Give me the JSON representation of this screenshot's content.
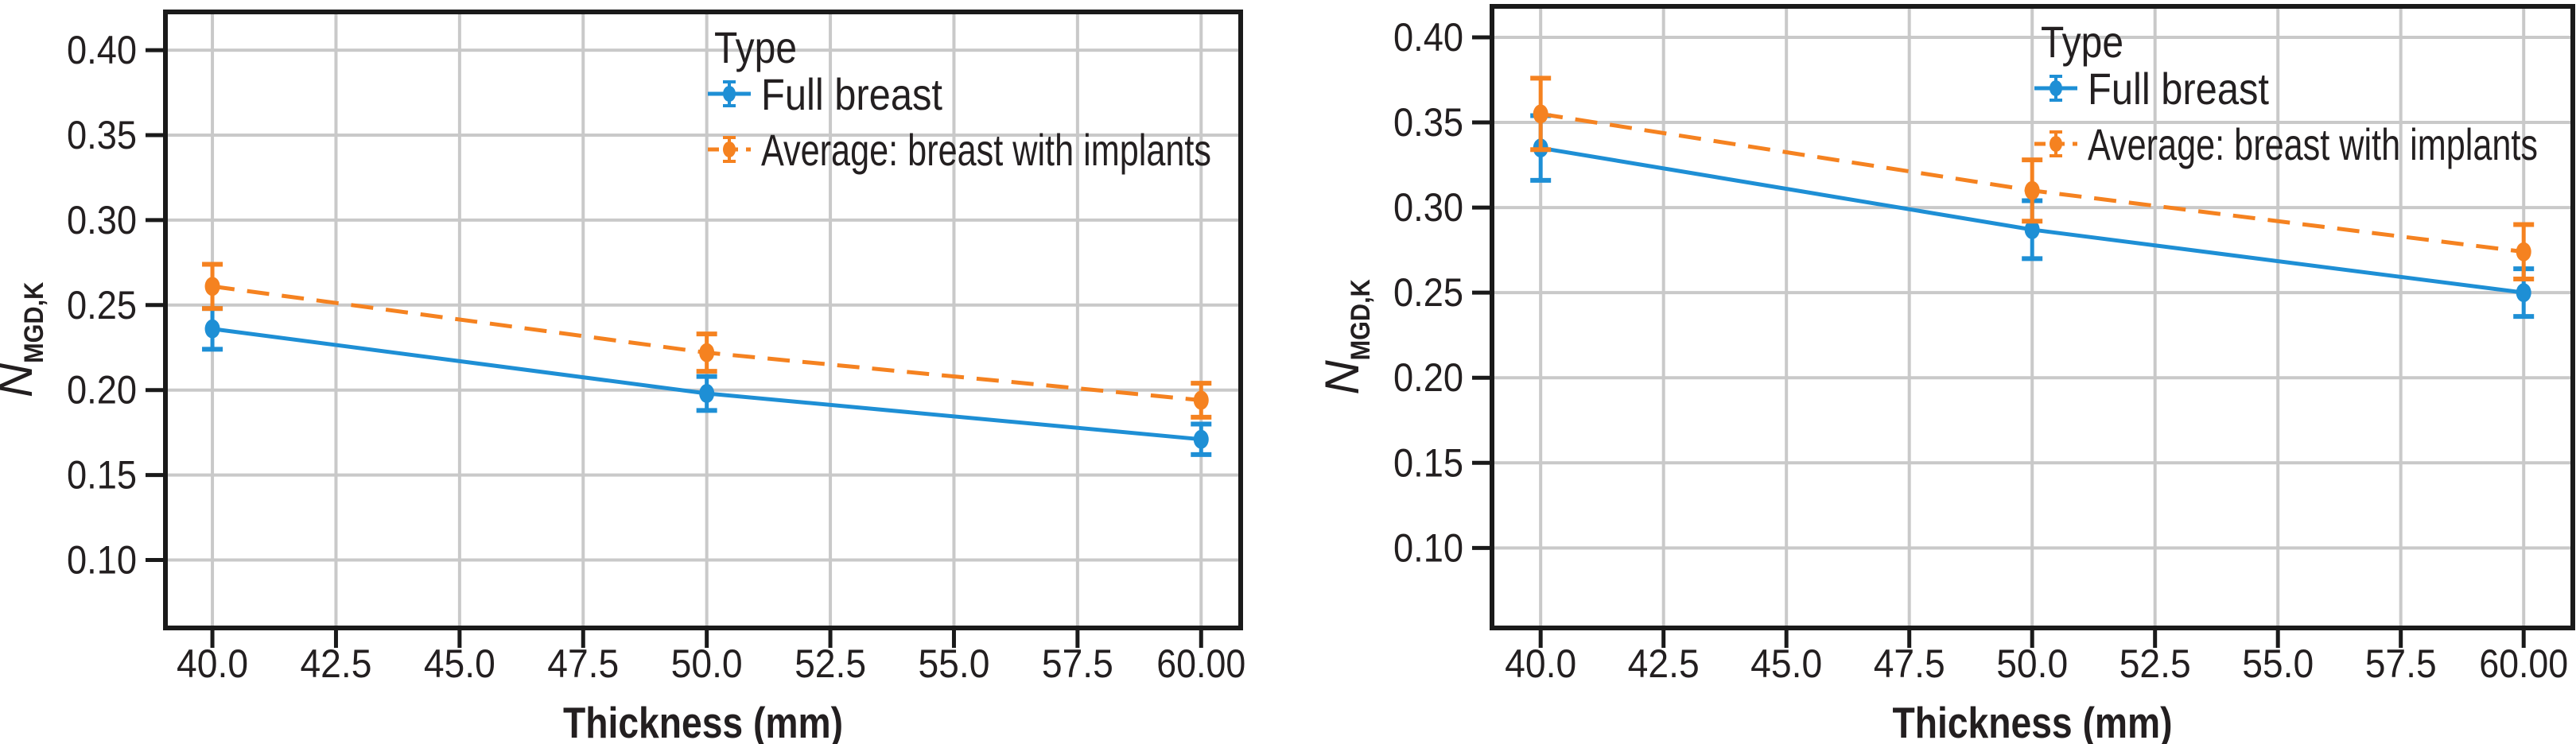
{
  "colors": {
    "full_breast_blue": "#1e8fd5",
    "implants_orange": "#f58220",
    "grid_gray": "#c9c9c9",
    "axis_black": "#1a1a1a",
    "text_black": "#231f20",
    "background": "#ffffff"
  },
  "chart_data": [
    {
      "type": "line",
      "panel": "left",
      "title": "",
      "xlabel": "Thickness (mm)",
      "ylabel_base": "N",
      "ylabel_subscript": "MGD,K",
      "grid": true,
      "legend": {
        "title": "Type",
        "position": "upper center inside"
      },
      "x_tick_labels": [
        "40.0",
        "42.5",
        "45.0",
        "47.5",
        "50.0",
        "52.5",
        "55.0",
        "57.5",
        "60.00"
      ],
      "x_tick_values": [
        40.0,
        42.5,
        45.0,
        47.5,
        50.0,
        52.5,
        55.0,
        57.5,
        60.0
      ],
      "y_tick_labels": [
        "0.40",
        "0.35",
        "0.30",
        "0.25",
        "0.20",
        "0.15",
        "0.10"
      ],
      "y_tick_values": [
        0.4,
        0.35,
        0.3,
        0.25,
        0.2,
        0.15,
        0.1
      ],
      "xlim": [
        39.05,
        60.8
      ],
      "ylim": [
        0.06,
        0.4225
      ],
      "series": [
        {
          "name": "Full breast",
          "color": "#1e8fd5",
          "line_style": "solid",
          "marker": "circle",
          "x": [
            40.0,
            50.0,
            60.0
          ],
          "y": [
            0.236,
            0.198,
            0.171
          ],
          "yerr": [
            0.012,
            0.01,
            0.009
          ]
        },
        {
          "name": "Average: breast with implants",
          "color": "#f58220",
          "line_style": "dashed",
          "marker": "circle",
          "x": [
            40.0,
            50.0,
            60.0
          ],
          "y": [
            0.261,
            0.222,
            0.194
          ],
          "yerr": [
            0.013,
            0.011,
            0.01
          ]
        }
      ]
    },
    {
      "type": "line",
      "panel": "right",
      "title": "",
      "xlabel": "Thickness (mm)",
      "ylabel_base": "N",
      "ylabel_subscript": "MGD,K",
      "grid": true,
      "legend": {
        "title": "Type",
        "position": "upper center inside"
      },
      "x_tick_labels": [
        "40.0",
        "42.5",
        "45.0",
        "47.5",
        "50.0",
        "52.5",
        "55.0",
        "57.5",
        "60.00"
      ],
      "x_tick_values": [
        40.0,
        42.5,
        45.0,
        47.5,
        50.0,
        52.5,
        55.0,
        57.5,
        60.0
      ],
      "y_tick_labels": [
        "0.40",
        "0.35",
        "0.30",
        "0.25",
        "0.20",
        "0.15",
        "0.10"
      ],
      "y_tick_values": [
        0.4,
        0.35,
        0.3,
        0.25,
        0.2,
        0.15,
        0.1
      ],
      "xlim": [
        39.01,
        61.0
      ],
      "ylim": [
        0.053,
        0.4182
      ],
      "series": [
        {
          "name": "Full breast",
          "color": "#1e8fd5",
          "line_style": "solid",
          "marker": "circle",
          "x": [
            40.0,
            50.0,
            60.0
          ],
          "y": [
            0.335,
            0.287,
            0.25
          ],
          "yerr": [
            0.019,
            0.017,
            0.014
          ]
        },
        {
          "name": "Average: breast with implants",
          "color": "#f58220",
          "line_style": "dashed",
          "marker": "circle",
          "x": [
            40.0,
            50.0,
            60.0
          ],
          "y": [
            0.355,
            0.31,
            0.274
          ],
          "yerr": [
            0.021,
            0.018,
            0.016
          ]
        }
      ]
    }
  ]
}
